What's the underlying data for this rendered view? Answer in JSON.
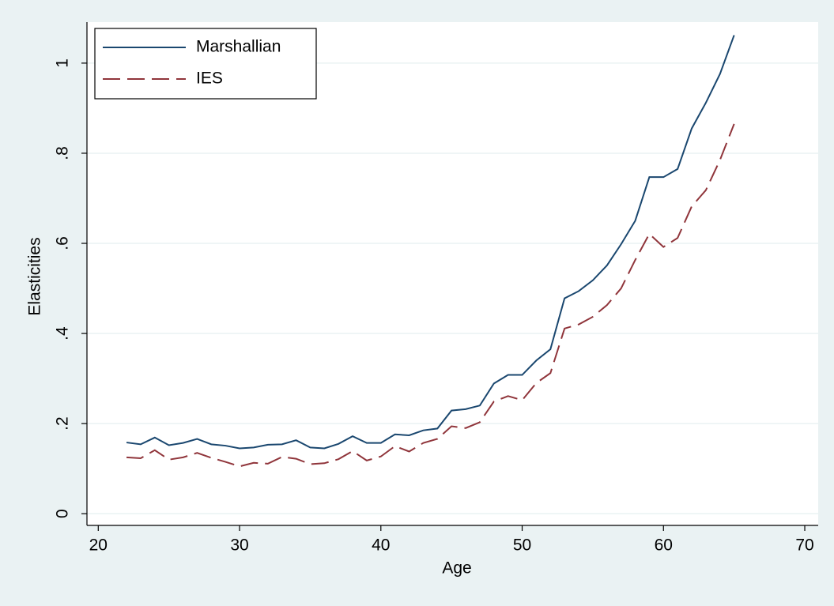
{
  "chart_data": {
    "type": "line",
    "x_label": "Age",
    "y_label": "Elasticities",
    "x": [
      22,
      23,
      24,
      25,
      26,
      27,
      28,
      29,
      30,
      31,
      32,
      33,
      34,
      35,
      36,
      37,
      38,
      39,
      40,
      41,
      42,
      43,
      44,
      45,
      46,
      47,
      48,
      49,
      50,
      51,
      52,
      53,
      54,
      55,
      56,
      57,
      58,
      59,
      60,
      61,
      62,
      63,
      64,
      65
    ],
    "series": [
      {
        "name": "Marshallian",
        "color": "#1a476f",
        "dash": false,
        "values": [
          0.158,
          0.154,
          0.169,
          0.152,
          0.157,
          0.166,
          0.154,
          0.151,
          0.145,
          0.147,
          0.153,
          0.154,
          0.163,
          0.147,
          0.145,
          0.155,
          0.172,
          0.157,
          0.157,
          0.176,
          0.174,
          0.185,
          0.189,
          0.229,
          0.232,
          0.24,
          0.289,
          0.308,
          0.308,
          0.34,
          0.365,
          0.478,
          0.494,
          0.518,
          0.551,
          0.598,
          0.65,
          0.747,
          0.747,
          0.765,
          0.855,
          0.912,
          0.976,
          1.062
        ]
      },
      {
        "name": "IES",
        "color": "#90353b",
        "dash": true,
        "values": [
          0.125,
          0.123,
          0.141,
          0.12,
          0.125,
          0.135,
          0.124,
          0.115,
          0.105,
          0.113,
          0.111,
          0.126,
          0.122,
          0.11,
          0.112,
          0.121,
          0.139,
          0.118,
          0.127,
          0.15,
          0.138,
          0.157,
          0.166,
          0.194,
          0.19,
          0.203,
          0.249,
          0.261,
          0.252,
          0.29,
          0.312,
          0.411,
          0.42,
          0.437,
          0.463,
          0.5,
          0.563,
          0.621,
          0.592,
          0.612,
          0.682,
          0.718,
          0.785,
          0.865
        ]
      }
    ],
    "xlim": [
      19.2,
      70.95
    ],
    "xticks": [
      20,
      30,
      40,
      50,
      60,
      70
    ],
    "ylim": [
      -0.026,
      1.091
    ],
    "yticks": [
      0,
      {
        "value": 0.2,
        "label": ".2"
      },
      {
        "value": 0.4,
        "label": ".4"
      },
      {
        "value": 0.6,
        "label": ".6"
      },
      {
        "value": 0.8,
        "label": ".8"
      },
      1
    ],
    "grid": true,
    "legend": "top-left"
  }
}
